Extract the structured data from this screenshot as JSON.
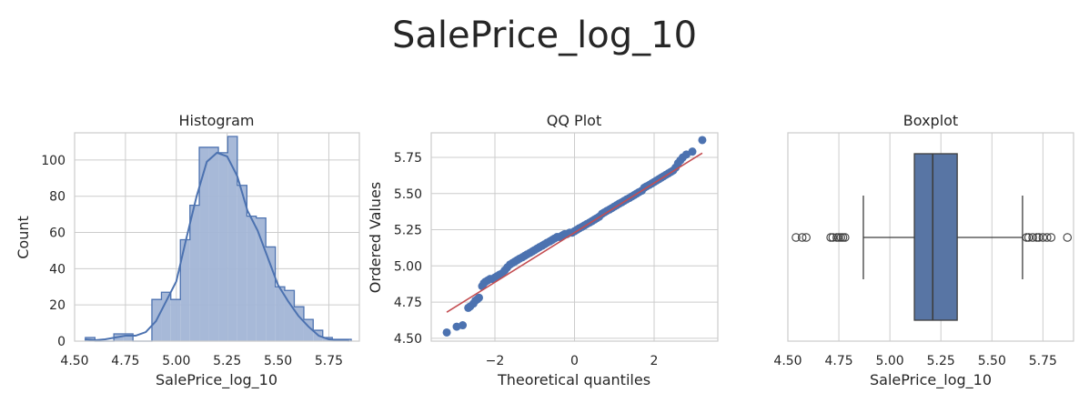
{
  "figure": {
    "title": "SalePrice_log_10"
  },
  "colors": {
    "primary": "#4c72b0",
    "fill": "#a2b5d6",
    "qq_line": "#c44e52",
    "grid": "#cccccc",
    "text": "#262626",
    "box": "#5875a4"
  },
  "chart_data": [
    {
      "type": "bar",
      "title": "Histogram",
      "xlabel": "SalePrice_log_10",
      "ylabel": "Count",
      "xlim": [
        4.5,
        5.9
      ],
      "ylim": [
        0,
        115
      ],
      "xticks": [
        "4.50",
        "4.75",
        "5.00",
        "5.25",
        "5.50",
        "5.75"
      ],
      "yticks": [
        "0",
        "20",
        "40",
        "60",
        "80",
        "100"
      ],
      "bins": {
        "edges": [
          4.553,
          4.6,
          4.647,
          4.693,
          4.74,
          4.787,
          4.833,
          4.88,
          4.927,
          4.973,
          5.02,
          5.067,
          5.113,
          5.16,
          5.207,
          5.253,
          5.3,
          5.347,
          5.393,
          5.44,
          5.487,
          5.533,
          5.58,
          5.627,
          5.673,
          5.72,
          5.767,
          5.813,
          5.86
        ],
        "counts": [
          2,
          0,
          0,
          4,
          4,
          0,
          0,
          23,
          27,
          23,
          56,
          75,
          107,
          107,
          104,
          113,
          86,
          69,
          68,
          52,
          30,
          28,
          19,
          12,
          6,
          2,
          1,
          1
        ]
      },
      "kde": {
        "x": [
          4.55,
          4.6,
          4.65,
          4.7,
          4.75,
          4.8,
          4.85,
          4.9,
          4.95,
          5.0,
          5.05,
          5.1,
          5.15,
          5.2,
          5.25,
          5.3,
          5.35,
          5.4,
          5.45,
          5.5,
          5.55,
          5.6,
          5.65,
          5.7,
          5.75,
          5.8,
          5.85
        ],
        "y": [
          1,
          0.5,
          1,
          2,
          3,
          3,
          5,
          11,
          22,
          33,
          57,
          80,
          99,
          104,
          102,
          91,
          72,
          61,
          46,
          31,
          22,
          14,
          8,
          3,
          1,
          0.5,
          0.2
        ]
      }
    },
    {
      "type": "scatter",
      "title": "QQ Plot",
      "xlabel": "Theoretical quantiles",
      "ylabel": "Ordered Values",
      "xlim": [
        -3.6,
        3.6
      ],
      "ylim": [
        4.48,
        5.92
      ],
      "xticks": [
        "−2",
        "0",
        "2"
      ],
      "yticks": [
        "4.50",
        "4.75",
        "5.00",
        "5.25",
        "5.50",
        "5.75"
      ],
      "points": {
        "x": [
          -3.21,
          -2.96,
          -2.81,
          -2.67,
          -2.62,
          -2.54,
          -2.49,
          -2.44,
          -2.4,
          -2.32,
          -2.28,
          -2.24,
          -2.18,
          -2.12,
          -2.06,
          -2.0,
          -1.94,
          -1.88,
          -1.81,
          -1.75,
          -1.69,
          -1.62,
          -1.56,
          -1.5,
          -1.44,
          -1.38,
          -1.31,
          -1.25,
          -1.19,
          -1.12,
          -1.06,
          -1.0,
          -0.94,
          -0.88,
          -0.81,
          -0.75,
          -0.69,
          -0.62,
          -0.56,
          -0.5,
          -0.44,
          -0.38,
          -0.31,
          -0.25,
          -0.19,
          -0.12,
          -0.06,
          0.0,
          0.06,
          0.12,
          0.19,
          0.25,
          0.31,
          0.38,
          0.44,
          0.5,
          0.56,
          0.62,
          0.69,
          0.75,
          0.81,
          0.88,
          0.94,
          1.0,
          1.06,
          1.12,
          1.19,
          1.25,
          1.31,
          1.38,
          1.44,
          1.5,
          1.56,
          1.62,
          1.69,
          1.75,
          1.81,
          1.88,
          1.94,
          2.0,
          2.06,
          2.12,
          2.18,
          2.24,
          2.3,
          2.36,
          2.42,
          2.48,
          2.54,
          2.6,
          2.66,
          2.72,
          2.81,
          2.96,
          3.21
        ],
        "y": [
          4.54,
          4.58,
          4.59,
          4.71,
          4.72,
          4.74,
          4.76,
          4.77,
          4.78,
          4.86,
          4.88,
          4.89,
          4.9,
          4.91,
          4.91,
          4.92,
          4.93,
          4.94,
          4.95,
          4.97,
          4.99,
          5.01,
          5.02,
          5.03,
          5.04,
          5.05,
          5.06,
          5.07,
          5.08,
          5.09,
          5.1,
          5.11,
          5.12,
          5.13,
          5.14,
          5.15,
          5.16,
          5.17,
          5.18,
          5.19,
          5.2,
          5.2,
          5.21,
          5.22,
          5.22,
          5.23,
          5.23,
          5.24,
          5.25,
          5.26,
          5.27,
          5.28,
          5.29,
          5.3,
          5.31,
          5.32,
          5.33,
          5.34,
          5.36,
          5.37,
          5.38,
          5.39,
          5.4,
          5.41,
          5.42,
          5.43,
          5.44,
          5.45,
          5.46,
          5.47,
          5.48,
          5.49,
          5.5,
          5.51,
          5.52,
          5.54,
          5.55,
          5.56,
          5.57,
          5.58,
          5.59,
          5.6,
          5.61,
          5.62,
          5.63,
          5.64,
          5.65,
          5.66,
          5.68,
          5.71,
          5.73,
          5.75,
          5.77,
          5.79,
          5.87
        ]
      },
      "fit_line": {
        "x": [
          -3.21,
          3.21
        ],
        "y": [
          4.68,
          5.78
        ]
      }
    },
    {
      "type": "box",
      "title": "Boxplot",
      "xlabel": "SalePrice_log_10",
      "xlim": [
        4.5,
        5.9
      ],
      "xticks": [
        "4.50",
        "4.75",
        "5.00",
        "5.25",
        "5.50",
        "5.75"
      ],
      "box": {
        "whisker_low": 4.87,
        "q1": 5.12,
        "median": 5.21,
        "q3": 5.33,
        "whisker_high": 5.65
      },
      "outliers": [
        4.54,
        4.57,
        4.59,
        4.71,
        4.72,
        4.74,
        4.75,
        4.76,
        4.77,
        4.78,
        5.67,
        5.68,
        5.7,
        5.72,
        5.73,
        5.75,
        5.77,
        5.79,
        5.87
      ]
    }
  ]
}
